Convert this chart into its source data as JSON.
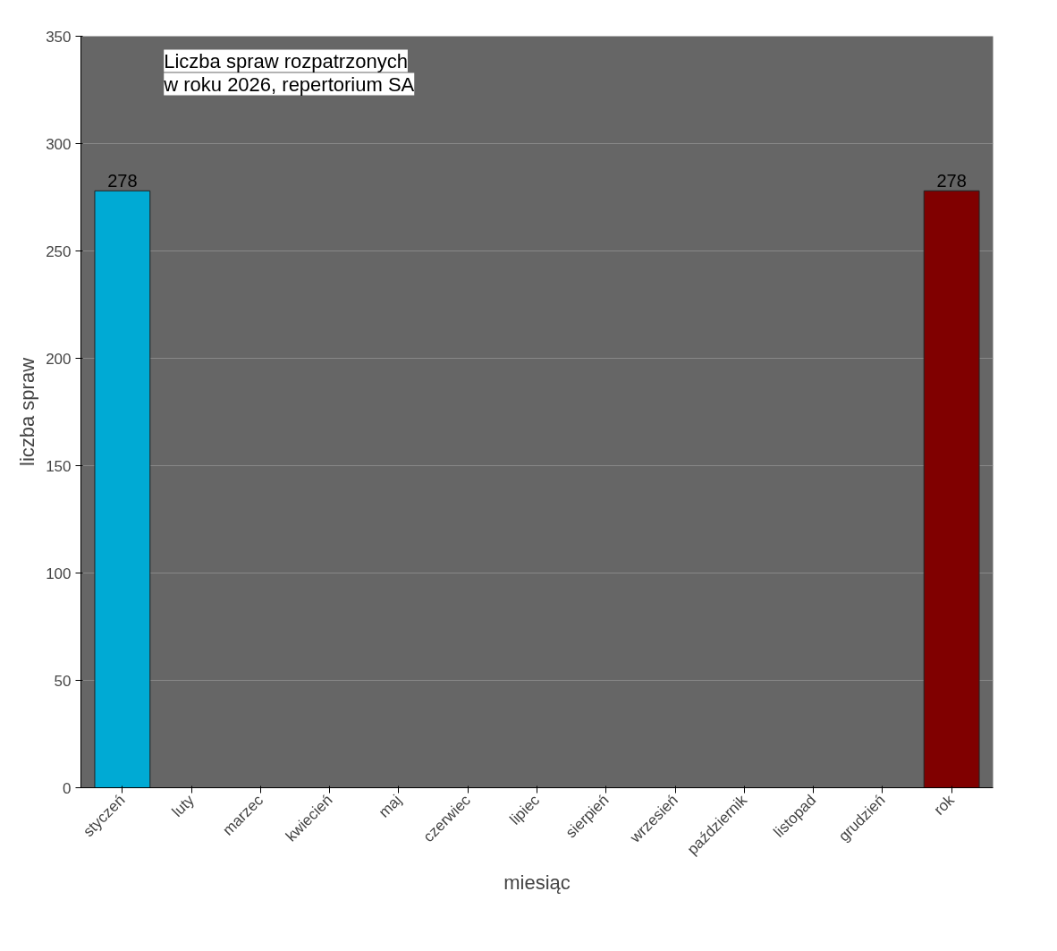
{
  "chart_data": {
    "type": "bar",
    "title": "Liczba spraw rozpatrzonych\nw roku 2026, repertorium SA",
    "xlabel": "miesiąc",
    "ylabel": "liczba spraw",
    "categories": [
      "styczeń",
      "luty",
      "marzec",
      "kwiecień",
      "maj",
      "czerwiec",
      "lipiec",
      "sierpień",
      "wrzesień",
      "październik",
      "listopad",
      "grudzień",
      "rok"
    ],
    "values": [
      278,
      null,
      null,
      null,
      null,
      null,
      null,
      null,
      null,
      null,
      null,
      null,
      278
    ],
    "colors": [
      "#00aad4",
      "#00aad4",
      "#00aad4",
      "#00aad4",
      "#00aad4",
      "#00aad4",
      "#00aad4",
      "#00aad4",
      "#00aad4",
      "#00aad4",
      "#00aad4",
      "#00aad4",
      "#800000"
    ],
    "value_labels": [
      "278",
      null,
      null,
      null,
      null,
      null,
      null,
      null,
      null,
      null,
      null,
      null,
      "278"
    ],
    "ylim": [
      0,
      350
    ],
    "yticks": [
      0,
      50,
      100,
      150,
      200,
      250,
      300,
      350
    ],
    "grid": "y"
  }
}
